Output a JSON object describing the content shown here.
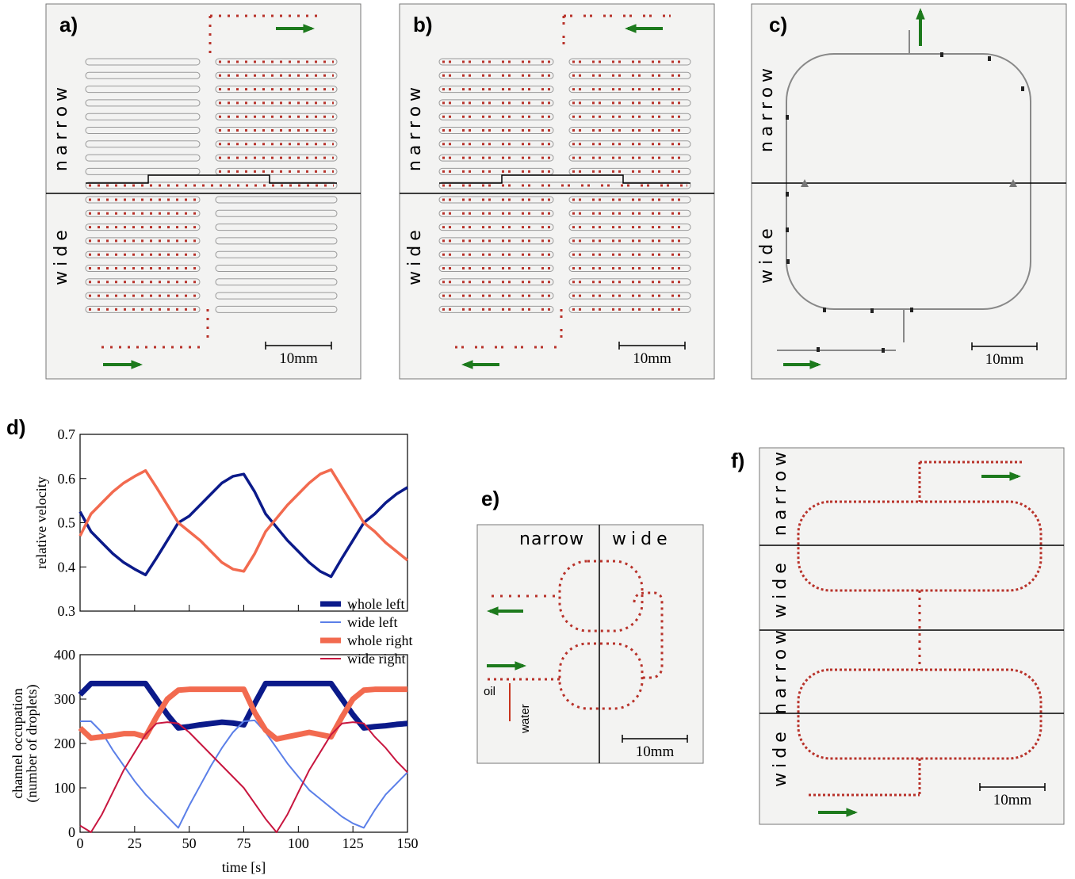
{
  "panels": [
    {
      "label": "a)",
      "regions": [
        "narrow",
        "wide"
      ],
      "scale": "10mm"
    },
    {
      "label": "b)",
      "regions": [
        "narrow",
        "wide"
      ],
      "scale": "10mm"
    },
    {
      "label": "c)",
      "regions": [
        "narrow",
        "wide"
      ],
      "scale": "10mm"
    },
    {
      "label": "e)",
      "regions": [
        "narrow",
        "wide"
      ],
      "scale": "10mm",
      "inlets": [
        "oil",
        "water"
      ]
    },
    {
      "label": "f)",
      "regions": [
        "narrow",
        "wide",
        "narrow",
        "wide"
      ],
      "scale": "10mm"
    }
  ],
  "panel_d": {
    "label": "d)"
  },
  "chart_data": [
    {
      "type": "line",
      "ylabel": "relative velocity",
      "x": [
        0,
        5,
        10,
        15,
        20,
        25,
        30,
        35,
        40,
        45,
        50,
        55,
        60,
        65,
        70,
        75,
        80,
        85,
        90,
        95,
        100,
        105,
        110,
        115,
        120,
        125,
        130,
        135,
        140,
        145,
        150
      ],
      "xlim": [
        0,
        150
      ],
      "ylim": [
        0.3,
        0.7
      ],
      "yticks": [
        0.3,
        0.4,
        0.5,
        0.6,
        0.7
      ],
      "series": [
        {
          "color": "#0b1a8a",
          "values": [
            0.525,
            0.48,
            0.455,
            0.43,
            0.41,
            0.395,
            0.382,
            0.42,
            0.46,
            0.5,
            0.515,
            0.54,
            0.565,
            0.59,
            0.605,
            0.61,
            0.57,
            0.52,
            0.49,
            0.46,
            0.435,
            0.41,
            0.39,
            0.378,
            0.42,
            0.46,
            0.5,
            0.52,
            0.545,
            0.565,
            0.58
          ]
        },
        {
          "color": "#f26a4f",
          "values": [
            0.47,
            0.52,
            0.545,
            0.57,
            0.59,
            0.605,
            0.618,
            0.58,
            0.54,
            0.5,
            0.48,
            0.46,
            0.435,
            0.41,
            0.395,
            0.39,
            0.43,
            0.48,
            0.51,
            0.54,
            0.565,
            0.59,
            0.61,
            0.62,
            0.58,
            0.54,
            0.5,
            0.48,
            0.455,
            0.435,
            0.415
          ]
        }
      ]
    },
    {
      "type": "line",
      "xlabel": "time [s]",
      "ylabel": [
        "channel occupation",
        "(number of droplets)"
      ],
      "x": [
        0,
        5,
        10,
        15,
        20,
        25,
        30,
        35,
        40,
        45,
        50,
        55,
        60,
        65,
        70,
        75,
        80,
        85,
        90,
        95,
        100,
        105,
        110,
        115,
        120,
        125,
        130,
        135,
        140,
        145,
        150
      ],
      "xlim": [
        0,
        150
      ],
      "xticks": [
        0,
        25,
        50,
        75,
        100,
        125,
        150
      ],
      "ylim": [
        0,
        400
      ],
      "yticks": [
        0,
        100,
        200,
        300,
        400
      ],
      "series": [
        {
          "name": "whole left",
          "color": "#0b1a8a",
          "width": 7,
          "values": [
            310,
            335,
            335,
            335,
            335,
            335,
            335,
            300,
            265,
            235,
            238,
            242,
            245,
            248,
            246,
            242,
            290,
            335,
            335,
            335,
            335,
            335,
            335,
            335,
            300,
            265,
            235,
            238,
            240,
            243,
            245
          ]
        },
        {
          "name": "wide left",
          "color": "#5b7fe8",
          "width": 2,
          "values": [
            250,
            250,
            225,
            185,
            150,
            115,
            85,
            60,
            35,
            10,
            60,
            105,
            150,
            190,
            225,
            250,
            252,
            225,
            190,
            155,
            125,
            95,
            75,
            55,
            35,
            20,
            10,
            50,
            85,
            110,
            135
          ]
        },
        {
          "name": "whole right",
          "color": "#f26a4f",
          "width": 7,
          "values": [
            235,
            212,
            215,
            218,
            222,
            222,
            215,
            260,
            300,
            320,
            322,
            322,
            322,
            322,
            322,
            322,
            270,
            230,
            210,
            215,
            220,
            225,
            220,
            215,
            260,
            300,
            320,
            322,
            322,
            322,
            322
          ]
        },
        {
          "name": "wide right",
          "color": "#c8163f",
          "width": 2,
          "values": [
            15,
            0,
            40,
            90,
            140,
            180,
            220,
            245,
            248,
            245,
            225,
            200,
            175,
            150,
            125,
            100,
            65,
            30,
            0,
            40,
            90,
            140,
            180,
            220,
            245,
            248,
            245,
            215,
            190,
            160,
            135
          ]
        }
      ]
    }
  ]
}
